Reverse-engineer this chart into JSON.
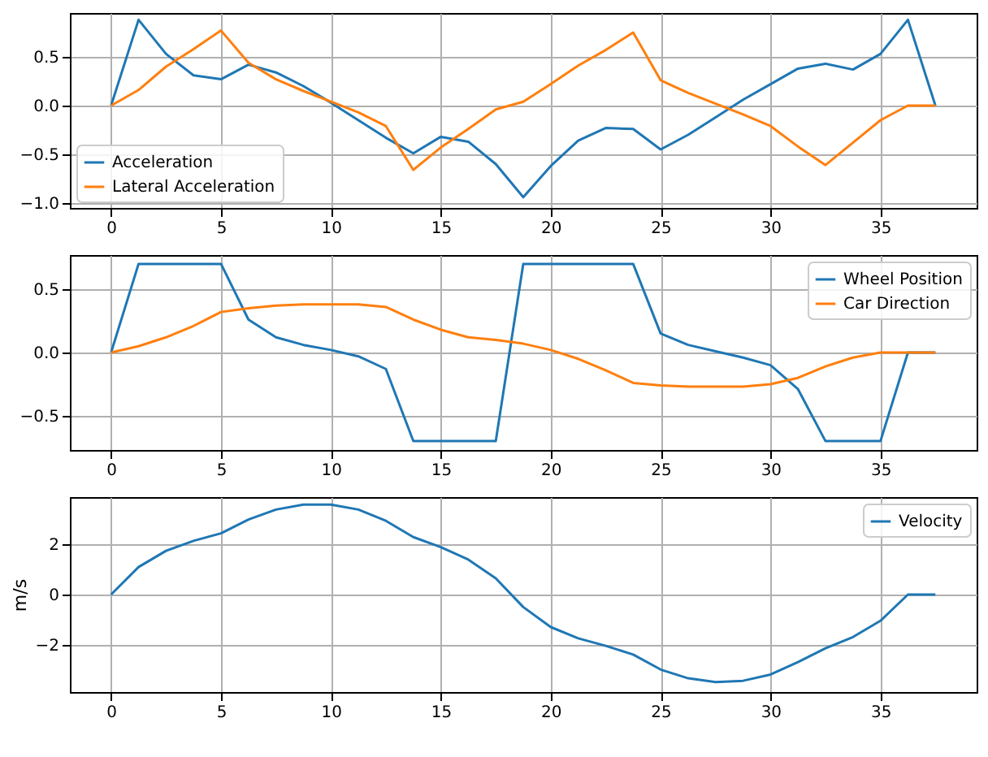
{
  "chart_data": [
    {
      "type": "line",
      "x": [
        0,
        1.25,
        2.5,
        3.75,
        5,
        6.25,
        7.5,
        8.75,
        10,
        11.25,
        12.5,
        13.75,
        15,
        16.25,
        17.5,
        18.75,
        20,
        21.25,
        22.5,
        23.75,
        25,
        26.25,
        27.5,
        28.75,
        30,
        31.25,
        32.5,
        33.75,
        35,
        36.25,
        37.5
      ],
      "series": [
        {
          "name": "Acceleration",
          "color": "#1f77b4",
          "values": [
            0,
            0.88,
            0.53,
            0.31,
            0.27,
            0.42,
            0.34,
            0.2,
            0.03,
            -0.15,
            -0.33,
            -0.49,
            -0.32,
            -0.37,
            -0.6,
            -0.94,
            -0.62,
            -0.36,
            -0.23,
            -0.24,
            -0.45,
            -0.3,
            -0.12,
            0.06,
            0.22,
            0.38,
            0.43,
            0.37,
            0.53,
            0.88,
            0
          ]
        },
        {
          "name": "Lateral Acceleration",
          "color": "#ff7f0e",
          "values": [
            0,
            0.16,
            0.4,
            0.58,
            0.77,
            0.44,
            0.27,
            0.15,
            0.04,
            -0.07,
            -0.21,
            -0.66,
            -0.43,
            -0.24,
            -0.04,
            0.04,
            0.22,
            0.41,
            0.57,
            0.75,
            0.26,
            0.13,
            0.02,
            -0.09,
            -0.21,
            -0.42,
            -0.61,
            -0.38,
            -0.15,
            0,
            0
          ]
        }
      ],
      "xlim": [
        -1.875,
        39.375
      ],
      "xticks": [
        0,
        5,
        10,
        15,
        20,
        25,
        30,
        35
      ],
      "ylim": [
        -1.05,
        0.95
      ],
      "yticks": [
        {
          "value": -1,
          "label": "−1.0"
        },
        {
          "value": -0.5,
          "label": "−0.5"
        },
        {
          "value": 0,
          "label": "0.0"
        },
        {
          "value": 0.5,
          "label": "0.5"
        }
      ],
      "grid": true,
      "legend": "bottom left"
    },
    {
      "type": "line",
      "x": [
        0,
        1.25,
        2.5,
        3.75,
        5,
        6.25,
        7.5,
        8.75,
        10,
        11.25,
        12.5,
        13.75,
        15,
        16.25,
        17.5,
        18.75,
        20,
        21.25,
        22.5,
        23.75,
        25,
        26.25,
        27.5,
        28.75,
        30,
        31.25,
        32.5,
        33.75,
        35,
        36.25,
        37.5
      ],
      "series": [
        {
          "name": "Wheel Position",
          "color": "#1f77b4",
          "values": [
            0,
            0.7,
            0.7,
            0.7,
            0.7,
            0.26,
            0.12,
            0.06,
            0.02,
            -0.03,
            -0.13,
            -0.7,
            -0.7,
            -0.7,
            -0.7,
            0.7,
            0.7,
            0.7,
            0.7,
            0.7,
            0.15,
            0.06,
            0.01,
            -0.04,
            -0.1,
            -0.29,
            -0.7,
            -0.7,
            -0.7,
            0,
            0
          ]
        },
        {
          "name": "Car Direction",
          "color": "#ff7f0e",
          "values": [
            0,
            0.05,
            0.12,
            0.21,
            0.32,
            0.35,
            0.37,
            0.38,
            0.38,
            0.38,
            0.36,
            0.26,
            0.18,
            0.12,
            0.1,
            0.07,
            0.02,
            -0.05,
            -0.14,
            -0.24,
            -0.26,
            -0.27,
            -0.27,
            -0.27,
            -0.25,
            -0.2,
            -0.11,
            -0.04,
            0,
            0,
            0
          ]
        }
      ],
      "xlim": [
        -1.875,
        39.375
      ],
      "xticks": [
        0,
        5,
        10,
        15,
        20,
        25,
        30,
        35
      ],
      "ylim": [
        -0.77,
        0.77
      ],
      "yticks": [
        {
          "value": -0.5,
          "label": "−0.5"
        },
        {
          "value": 0,
          "label": "0.0"
        },
        {
          "value": 0.5,
          "label": "0.5"
        }
      ],
      "grid": true,
      "legend": "top right"
    },
    {
      "type": "line",
      "x": [
        0,
        1.25,
        2.5,
        3.75,
        5,
        6.25,
        7.5,
        8.75,
        10,
        11.25,
        12.5,
        13.75,
        15,
        16.25,
        17.5,
        18.75,
        20,
        21.25,
        22.5,
        23.75,
        25,
        26.25,
        27.5,
        28.75,
        30,
        31.25,
        32.5,
        33.75,
        35,
        36.25,
        37.5
      ],
      "ylabel": "m/s",
      "series": [
        {
          "name": "Velocity",
          "color": "#1f77b4",
          "values": [
            0,
            1.1,
            1.75,
            2.15,
            2.45,
            3,
            3.4,
            3.6,
            3.6,
            3.4,
            2.95,
            2.3,
            1.9,
            1.4,
            0.65,
            -0.5,
            -1.3,
            -1.75,
            -2.05,
            -2.4,
            -3,
            -3.35,
            -3.5,
            -3.45,
            -3.2,
            -2.7,
            -2.15,
            -1.7,
            -1.05,
            0,
            0
          ]
        }
      ],
      "xlim": [
        -1.875,
        39.375
      ],
      "xticks": [
        0,
        5,
        10,
        15,
        20,
        25,
        30,
        35
      ],
      "ylim": [
        -3.9,
        3.9
      ],
      "yticks": [
        {
          "value": -2,
          "label": "−2"
        },
        0,
        2
      ],
      "grid": true,
      "legend": "top right"
    }
  ]
}
